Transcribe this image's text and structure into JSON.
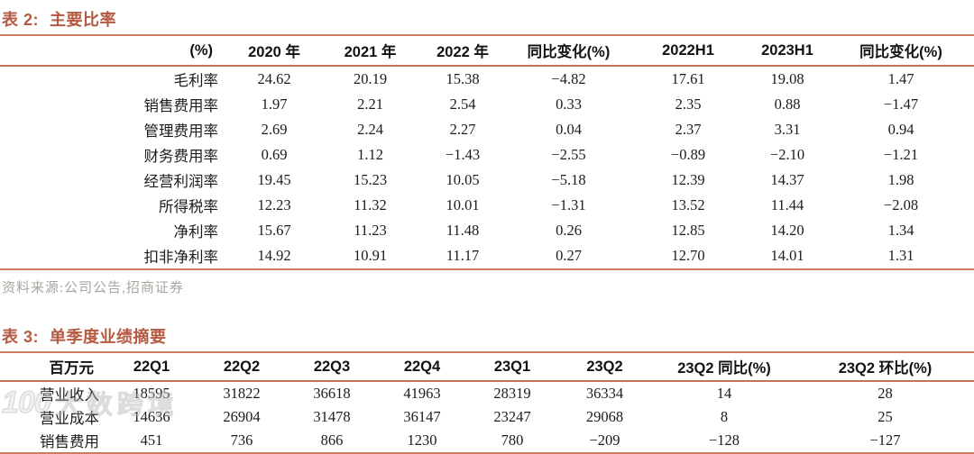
{
  "table2": {
    "title_prefix": "表 2:",
    "title_text": "主要比率",
    "columns": [
      "(%)",
      "2020 年",
      "2021 年",
      "2022 年",
      "同比变化(%)",
      "2022H1",
      "2023H1",
      "同比变化(%)"
    ],
    "rows": [
      {
        "label": "毛利率",
        "values": [
          "24.62",
          "20.19",
          "15.38",
          "−4.82",
          "17.61",
          "19.08",
          "1.47"
        ]
      },
      {
        "label": "销售费用率",
        "values": [
          "1.97",
          "2.21",
          "2.54",
          "0.33",
          "2.35",
          "0.88",
          "−1.47"
        ]
      },
      {
        "label": "管理费用率",
        "values": [
          "2.69",
          "2.24",
          "2.27",
          "0.04",
          "2.37",
          "3.31",
          "0.94"
        ]
      },
      {
        "label": "财务费用率",
        "values": [
          "0.69",
          "1.12",
          "−1.43",
          "−2.55",
          "−0.89",
          "−2.10",
          "−1.21"
        ]
      },
      {
        "label": "经营利润率",
        "values": [
          "19.45",
          "15.23",
          "10.05",
          "−5.18",
          "12.39",
          "14.37",
          "1.98"
        ]
      },
      {
        "label": "所得税率",
        "values": [
          "12.23",
          "11.32",
          "10.01",
          "−1.31",
          "13.52",
          "11.44",
          "−2.08"
        ]
      },
      {
        "label": "净利率",
        "values": [
          "15.67",
          "11.23",
          "11.48",
          "0.26",
          "12.85",
          "14.20",
          "1.34"
        ]
      },
      {
        "label": "扣非净利率",
        "values": [
          "14.92",
          "10.91",
          "11.17",
          "0.27",
          "12.70",
          "14.01",
          "1.31"
        ]
      }
    ],
    "source_note": "资料来源:公司公告,招商证券"
  },
  "table3": {
    "title_prefix": "表 3:",
    "title_text": "单季度业绩摘要",
    "columns": [
      "百万元",
      "22Q1",
      "22Q2",
      "22Q3",
      "22Q4",
      "23Q1",
      "23Q2",
      "23Q2 同比(%)",
      "23Q2 环比(%)"
    ],
    "rows": [
      {
        "label": "营业收入",
        "values": [
          "18595",
          "31822",
          "36618",
          "41963",
          "28319",
          "36334",
          "14",
          "28"
        ]
      },
      {
        "label": "营业成本",
        "values": [
          "14636",
          "26904",
          "31478",
          "36147",
          "23247",
          "29068",
          "8",
          "25"
        ]
      },
      {
        "label": "销售费用",
        "values": [
          "451",
          "736",
          "866",
          "1230",
          "780",
          "−209",
          "−128",
          "−127"
        ]
      }
    ]
  },
  "watermark": {
    "logo": "100",
    "text": "大数跨境"
  },
  "colors": {
    "accent": "#b45a42",
    "line": "#cb7d61",
    "source_gray": "#a9a49e"
  }
}
